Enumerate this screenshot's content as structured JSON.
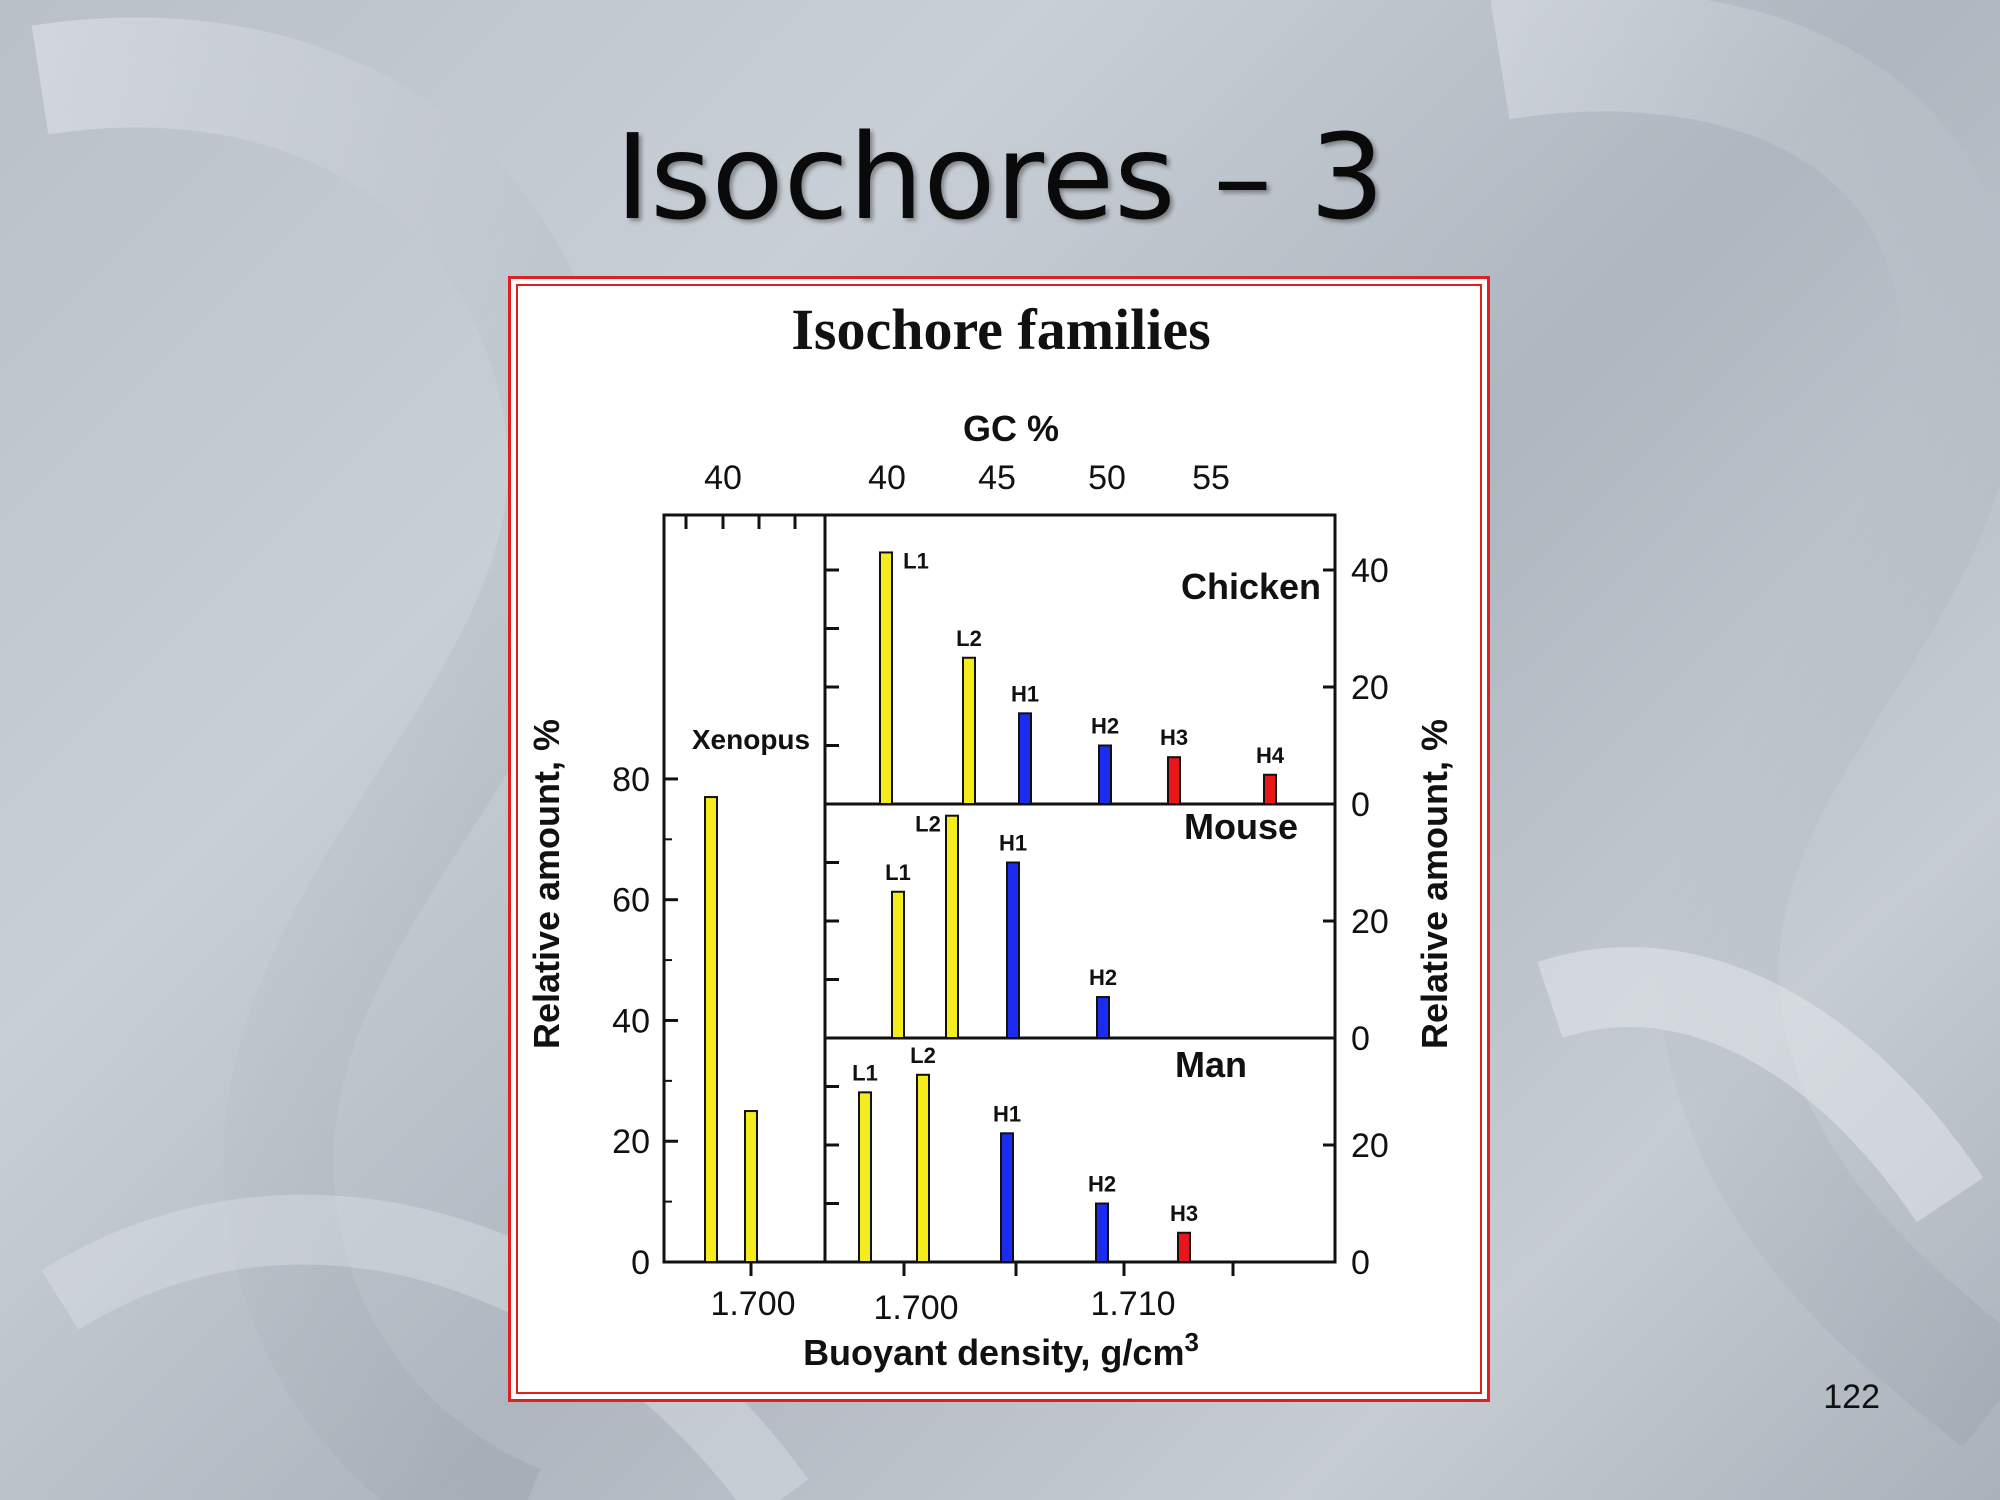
{
  "slide": {
    "title": "Isochores – 3",
    "page_number": "122"
  },
  "colors": {
    "yellow": "#f5ec1e",
    "blue": "#1b2cf0",
    "red": "#e8161b",
    "frame": "#e02020"
  },
  "chart_data": {
    "type": "bar",
    "title": "Isochore families",
    "top_axis_label": "GC %",
    "bottom_axis_label": "Buoyant density, g/cm",
    "bottom_axis_label_sup": "3",
    "left_axis_label": "Relative amount, %",
    "right_axis_label": "Relative amount, %",
    "panels": [
      {
        "name": "Xenopus",
        "ylim": [
          0,
          120
        ],
        "yticks": [
          "0",
          "20",
          "40",
          "60",
          "80"
        ],
        "xticks": [
          "1.700"
        ],
        "gc_ticks": [
          "40"
        ],
        "bars": [
          {
            "label": "",
            "value": 77,
            "color": "yellow"
          },
          {
            "label": "",
            "value": 25,
            "color": "yellow"
          }
        ]
      },
      {
        "name": "Chicken",
        "ylim": [
          0,
          42
        ],
        "yticks": [
          "0",
          "20",
          "40"
        ],
        "bars": [
          {
            "label": "L1",
            "value": 43,
            "color": "yellow"
          },
          {
            "label": "L2",
            "value": 25,
            "color": "yellow"
          },
          {
            "label": "H1",
            "value": 15.5,
            "color": "blue"
          },
          {
            "label": "H2",
            "value": 10,
            "color": "blue"
          },
          {
            "label": "H3",
            "value": 8,
            "color": "red"
          },
          {
            "label": "H4",
            "value": 5,
            "color": "red"
          }
        ]
      },
      {
        "name": "Mouse",
        "ylim": [
          0,
          40
        ],
        "yticks": [
          "0",
          "20"
        ],
        "bars": [
          {
            "label": "L1",
            "value": 25,
            "color": "yellow"
          },
          {
            "label": "L2",
            "value": 38,
            "color": "yellow"
          },
          {
            "label": "H1",
            "value": 30,
            "color": "blue"
          },
          {
            "label": "H2",
            "value": 7,
            "color": "blue"
          }
        ]
      },
      {
        "name": "Man",
        "ylim": [
          0,
          38
        ],
        "yticks": [
          "0",
          "20"
        ],
        "xticks": [
          "1.700",
          "1.710"
        ],
        "gc_ticks": [
          "40",
          "45",
          "50",
          "55"
        ],
        "bars": [
          {
            "label": "L1",
            "value": 29,
            "color": "yellow"
          },
          {
            "label": "L2",
            "value": 32,
            "color": "yellow"
          },
          {
            "label": "H1",
            "value": 22,
            "color": "blue"
          },
          {
            "label": "H2",
            "value": 10,
            "color": "blue"
          },
          {
            "label": "H3",
            "value": 5,
            "color": "red"
          }
        ]
      }
    ],
    "grid": false
  }
}
